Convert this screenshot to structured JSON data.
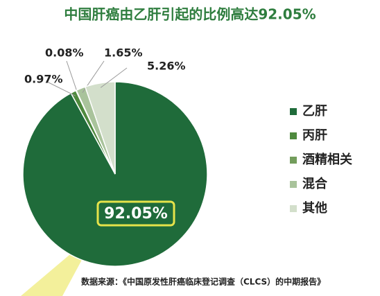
{
  "chart_data": {
    "type": "pie",
    "title": "中国肝癌由乙肝引起的比例高达92.05%",
    "categories": [
      "乙肝",
      "丙肝",
      "酒精相关",
      "混合",
      "其他"
    ],
    "values": [
      92.05,
      0.97,
      0.08,
      1.65,
      5.26
    ],
    "value_labels": [
      "92.05%",
      "0.97%",
      "0.08%",
      "1.65%",
      "5.26%"
    ],
    "colors": [
      "#1f6b3a",
      "#4f8a3e",
      "#739d5c",
      "#a9c39b",
      "#d3dfcb"
    ],
    "legend": "right",
    "source": "数据来源：《中国原发性肝癌临床登记调查（CLCS）的中期报告》"
  }
}
